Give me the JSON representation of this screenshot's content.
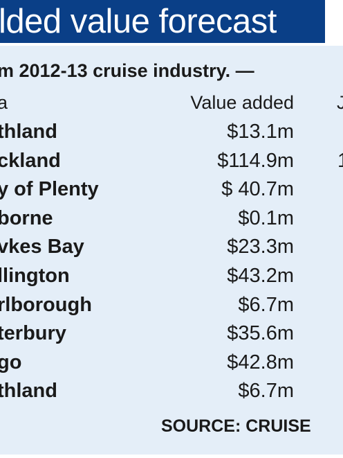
{
  "title": "lded value forecast",
  "subtitle": "m 2012-13 cruise industry. —",
  "headers": {
    "region": "a",
    "value": "Value added",
    "third": "J"
  },
  "chart_data": {
    "type": "table",
    "title": "lded value forecast",
    "columns": [
      "a",
      "Value added"
    ],
    "rows": [
      {
        "region": "thland",
        "value_label": "$13.1m",
        "value": 13.1,
        "third": ""
      },
      {
        "region": "ckland",
        "value_label": "$114.9m",
        "value": 114.9,
        "third": "1"
      },
      {
        "region": "y of Plenty",
        "value_label": "$ 40.7m",
        "value": 40.7,
        "third": ""
      },
      {
        "region": "borne",
        "value_label": "$0.1m",
        "value": 0.1,
        "third": ""
      },
      {
        "region": "vkes Bay",
        "value_label": "$23.3m",
        "value": 23.3,
        "third": ""
      },
      {
        "region": "llington",
        "value_label": "$43.2m",
        "value": 43.2,
        "third": ""
      },
      {
        "region": "rlborough",
        "value_label": "$6.7m",
        "value": 6.7,
        "third": ""
      },
      {
        "region": "terbury",
        "value_label": "$35.6m",
        "value": 35.6,
        "third": ""
      },
      {
        "region": "go",
        "value_label": "$42.8m",
        "value": 42.8,
        "third": ""
      },
      {
        "region": "thland",
        "value_label": "$6.7m",
        "value": 6.7,
        "third": ""
      }
    ]
  },
  "source": "SOURCE: CRUISE",
  "colors": {
    "banner": "#0a3f87",
    "panel": "#e4eef8",
    "text": "#1a1a1a"
  }
}
